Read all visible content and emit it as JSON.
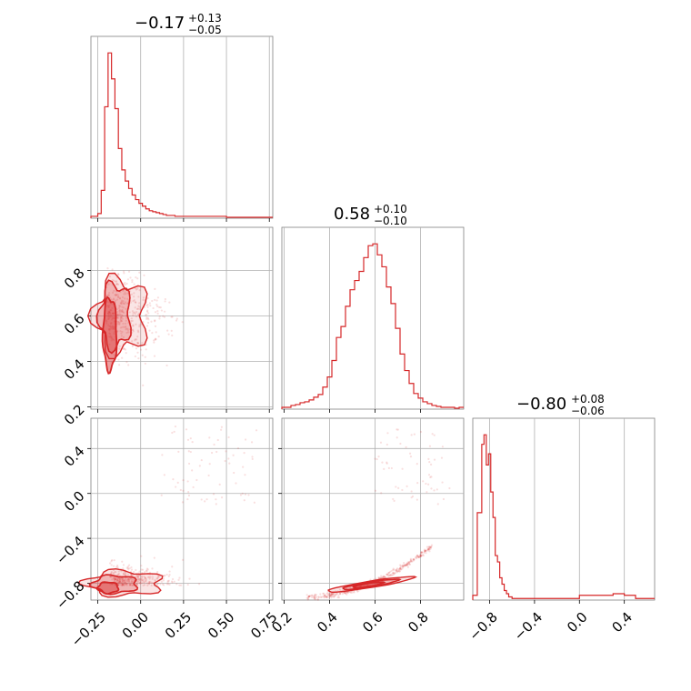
{
  "chart_data": {
    "type": "corner",
    "color": "#d62728",
    "grid": true,
    "parameters": [
      {
        "median": "−0.17",
        "plus": "+0.13",
        "minus": "−0.05"
      },
      {
        "median": "0.58",
        "plus": "+0.10",
        "minus": "−0.10"
      },
      {
        "median": "−0.80",
        "plus": "+0.08",
        "minus": "−0.06"
      }
    ],
    "axes": {
      "x0": {
        "range": [
          -0.29,
          0.77
        ],
        "ticks": [
          -0.25,
          0.0,
          0.25,
          0.5,
          0.75
        ],
        "tick_labels": [
          "−0.25",
          "0.00",
          "0.25",
          "0.50",
          "0.75"
        ]
      },
      "x1": {
        "range": [
          0.19,
          0.99
        ],
        "ticks": [
          0.2,
          0.4,
          0.6,
          0.8
        ],
        "tick_labels": [
          "0.2",
          "0.4",
          "0.6",
          "0.8"
        ]
      },
      "x2": {
        "range": [
          -0.95,
          0.67
        ],
        "ticks": [
          -0.8,
          -0.4,
          0.0,
          0.4
        ],
        "tick_labels": [
          "−0.8",
          "−0.4",
          "0.0",
          "0.4"
        ]
      },
      "y1": {
        "range": [
          0.19,
          0.99
        ],
        "ticks": [
          0.2,
          0.4,
          0.6,
          0.8
        ],
        "tick_labels": [
          "0.2",
          "0.4",
          "0.6",
          "0.8"
        ]
      },
      "y2": {
        "range": [
          -0.95,
          0.67
        ],
        "ticks": [
          -0.8,
          -0.4,
          0.0,
          0.4
        ],
        "tick_labels": [
          "−0.8",
          "−0.4",
          "0.0",
          "0.4"
        ]
      }
    },
    "histograms": [
      {
        "param": 0,
        "bin_edges": [
          -0.29,
          -0.27,
          -0.25,
          -0.23,
          -0.21,
          -0.19,
          -0.17,
          -0.15,
          -0.13,
          -0.11,
          -0.09,
          -0.07,
          -0.05,
          -0.03,
          -0.01,
          0.01,
          0.03,
          0.05,
          0.07,
          0.09,
          0.11,
          0.13,
          0.15,
          0.2,
          0.3,
          0.4,
          0.5,
          0.6,
          0.7,
          0.77
        ],
        "counts": [
          2,
          2,
          5,
          30,
          120,
          178,
          150,
          118,
          75,
          52,
          40,
          32,
          25,
          20,
          16,
          13,
          10,
          8,
          7,
          6,
          5,
          4,
          3,
          2,
          2,
          2,
          1,
          1,
          1
        ]
      },
      {
        "param": 1,
        "bin_edges": [
          0.19,
          0.21,
          0.23,
          0.25,
          0.27,
          0.29,
          0.31,
          0.33,
          0.35,
          0.37,
          0.39,
          0.41,
          0.43,
          0.45,
          0.47,
          0.49,
          0.51,
          0.53,
          0.55,
          0.57,
          0.59,
          0.61,
          0.63,
          0.65,
          0.67,
          0.69,
          0.71,
          0.73,
          0.75,
          0.77,
          0.79,
          0.81,
          0.83,
          0.85,
          0.87,
          0.89,
          0.91,
          0.93,
          0.95,
          0.97,
          0.99
        ],
        "counts": [
          2,
          2,
          4,
          5,
          7,
          8,
          10,
          13,
          16,
          24,
          35,
          53,
          78,
          90,
          112,
          130,
          140,
          150,
          165,
          178,
          180,
          168,
          155,
          133,
          115,
          88,
          60,
          42,
          28,
          17,
          12,
          8,
          6,
          4,
          3,
          2,
          2,
          2,
          1,
          2
        ]
      },
      {
        "param": 2,
        "bin_edges": [
          -0.95,
          -0.91,
          -0.87,
          -0.85,
          -0.83,
          -0.81,
          -0.79,
          -0.77,
          -0.75,
          -0.73,
          -0.71,
          -0.69,
          -0.67,
          -0.65,
          -0.63,
          -0.6,
          -0.5,
          -0.4,
          -0.3,
          -0.2,
          -0.1,
          0.0,
          0.1,
          0.2,
          0.3,
          0.4,
          0.5,
          0.67
        ],
        "counts": [
          3,
          55,
          98,
          104,
          85,
          92,
          68,
          52,
          28,
          24,
          14,
          10,
          6,
          4,
          2,
          1,
          1,
          1,
          1,
          1,
          1,
          3,
          3,
          3,
          4,
          3,
          1
        ]
      }
    ],
    "contour_panels": [
      {
        "x_param": 0,
        "y_param": 1
      },
      {
        "x_param": 0,
        "y_param": 2
      },
      {
        "x_param": 1,
        "y_param": 2
      }
    ]
  }
}
